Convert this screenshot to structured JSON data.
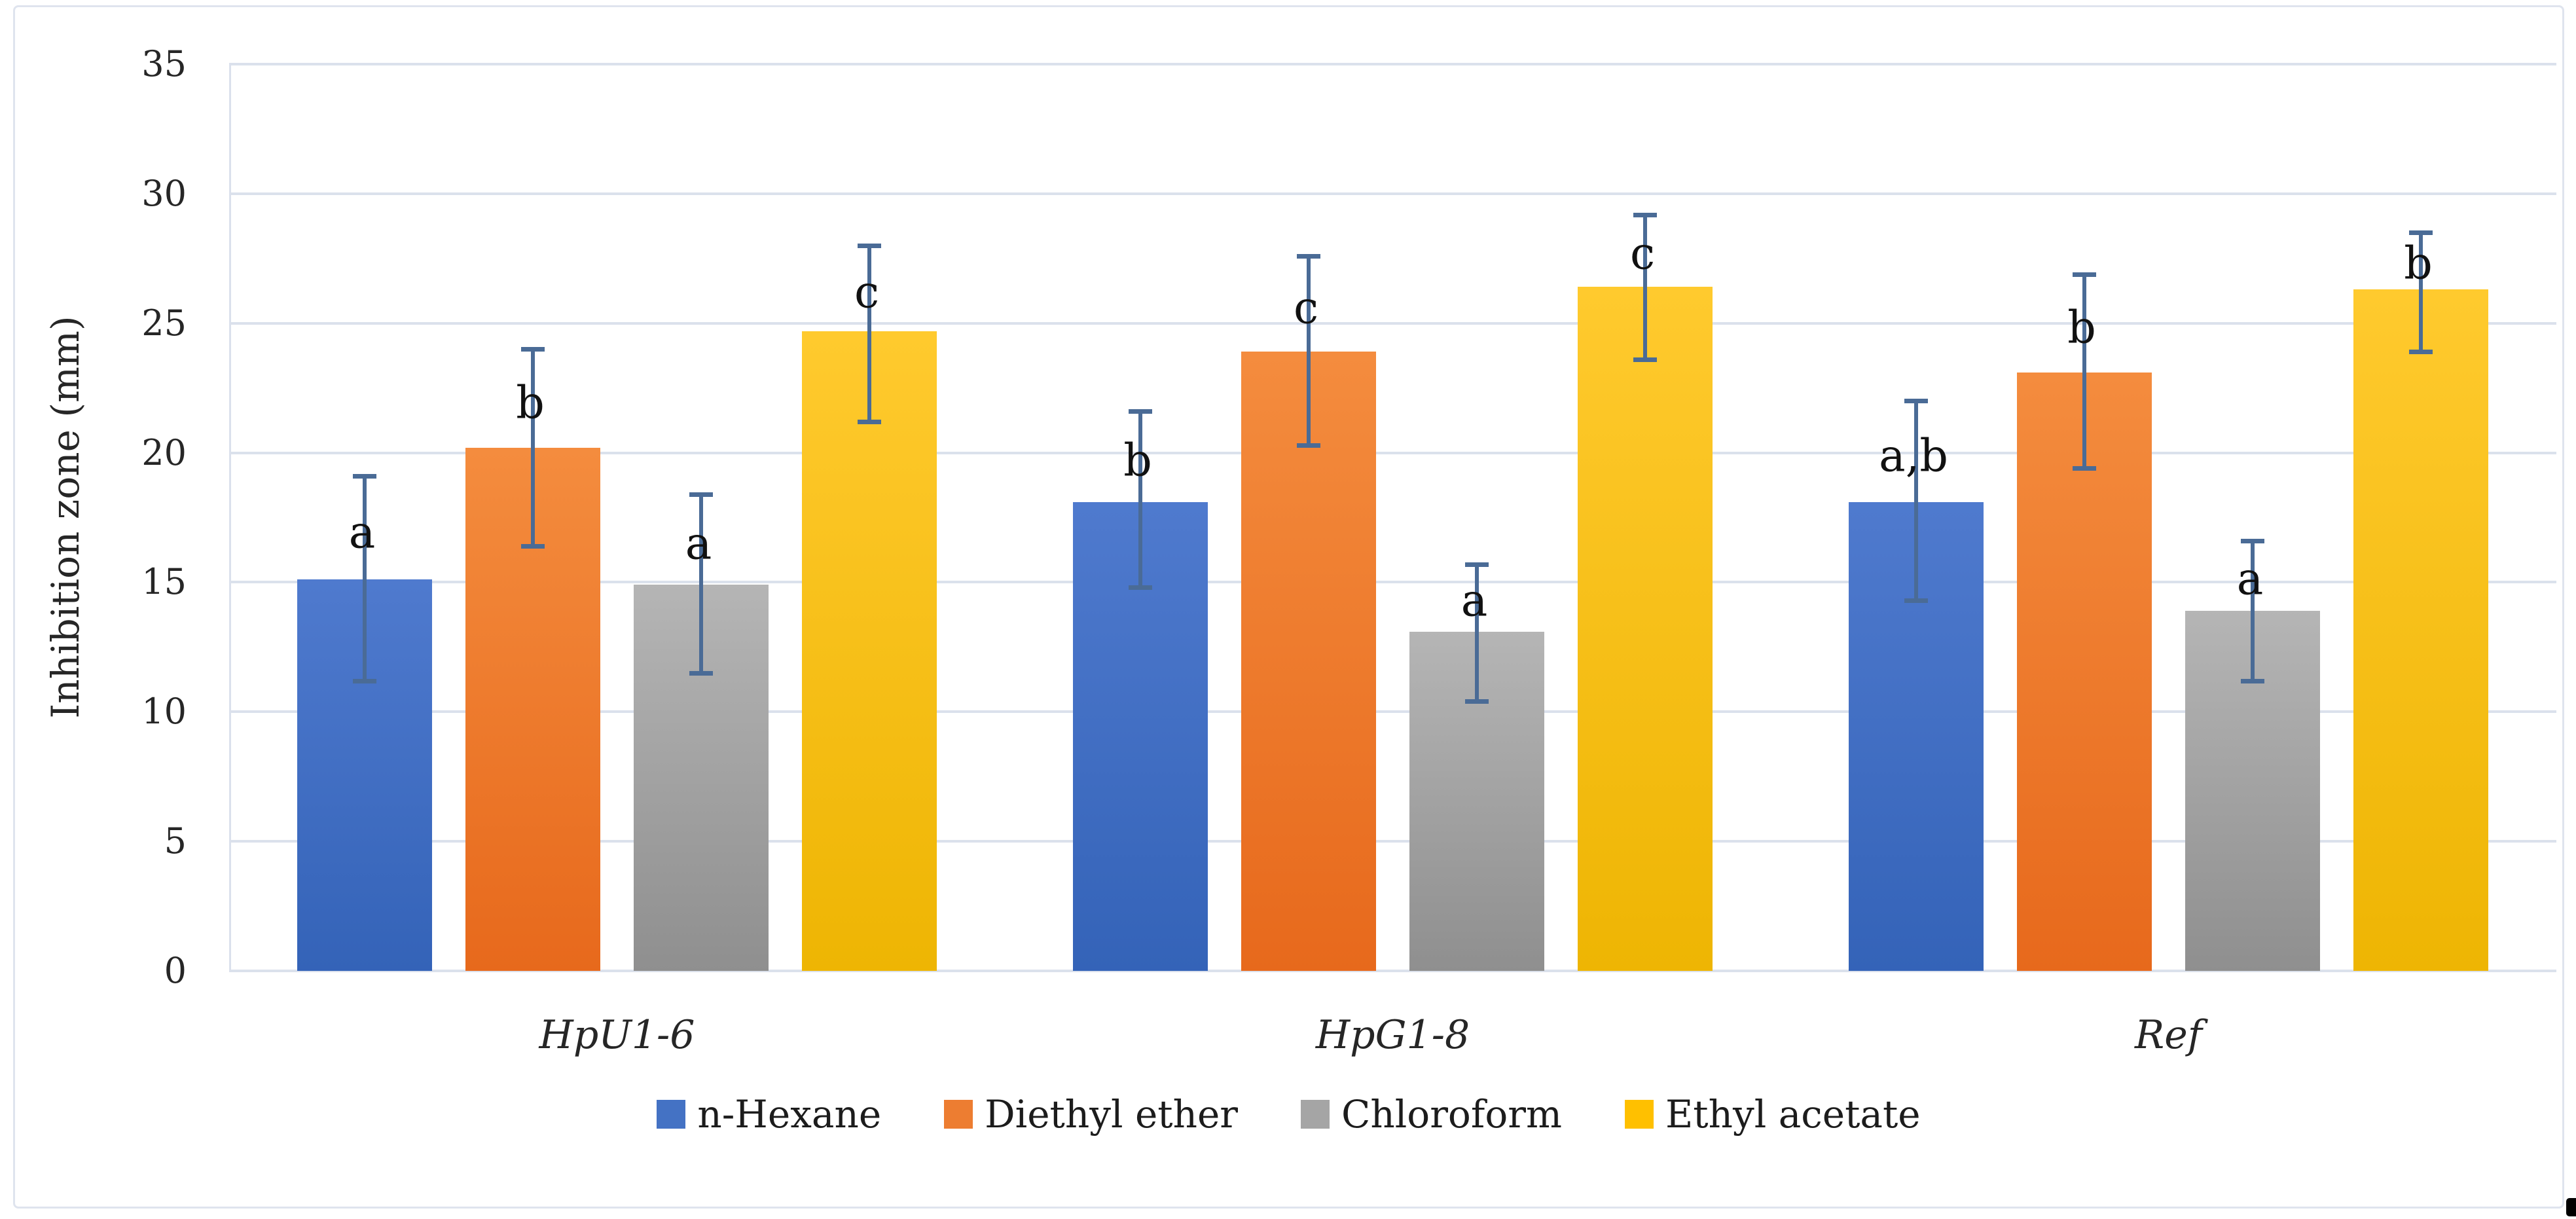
{
  "frame": {
    "border_color": "#dfe4ee",
    "background": "#ffffff",
    "corner_mark_color": "#000000"
  },
  "chart_data": {
    "type": "bar",
    "title": "",
    "xlabel": "",
    "ylabel": "Inhibition zone (mm)",
    "ylim": [
      0,
      35
    ],
    "yticks": [
      0,
      5,
      10,
      15,
      20,
      25,
      30,
      35
    ],
    "grid": true,
    "gridline_color": "#dbe1ec",
    "error_bar_color": "#4a6b96",
    "categories": [
      "HpU1-6",
      "HpG1-8",
      "Ref"
    ],
    "categories_style": "italic",
    "legend_position": "bottom",
    "series": [
      {
        "name": "n-Hexane",
        "color": "#4472C4",
        "gradient_top": "#4f7ace",
        "gradient_bottom": "#3463b8",
        "values": [
          15.1,
          18.1,
          18.1
        ],
        "error_low": [
          11.2,
          14.8,
          14.3
        ],
        "error_high": [
          19.1,
          21.6,
          22.0
        ],
        "sig_labels": [
          "a",
          "b",
          "a,b"
        ]
      },
      {
        "name": "Diethyl ether",
        "color": "#ED7D31",
        "gradient_top": "#f48c3e",
        "gradient_bottom": "#e7691c",
        "values": [
          20.2,
          23.9,
          23.1
        ],
        "error_low": [
          16.4,
          20.3,
          19.4
        ],
        "error_high": [
          24.0,
          27.6,
          26.9
        ],
        "sig_labels": [
          "b",
          "c",
          "b"
        ]
      },
      {
        "name": "Chloroform",
        "color": "#A5A5A5",
        "gradient_top": "#b5b5b5",
        "gradient_bottom": "#8f8f8f",
        "values": [
          14.9,
          13.1,
          13.9
        ],
        "error_low": [
          11.5,
          10.4,
          11.2
        ],
        "error_high": [
          18.4,
          15.7,
          16.6
        ],
        "sig_labels": [
          "a",
          "a",
          "a"
        ]
      },
      {
        "name": "Ethyl acetate",
        "color": "#FFC000",
        "gradient_top": "#ffca2e",
        "gradient_bottom": "#eeb503",
        "values": [
          24.7,
          26.4,
          26.3
        ],
        "error_low": [
          21.2,
          23.6,
          23.9
        ],
        "error_high": [
          28.0,
          29.2,
          28.5
        ],
        "sig_labels": [
          "c",
          "c",
          "b"
        ]
      }
    ]
  }
}
